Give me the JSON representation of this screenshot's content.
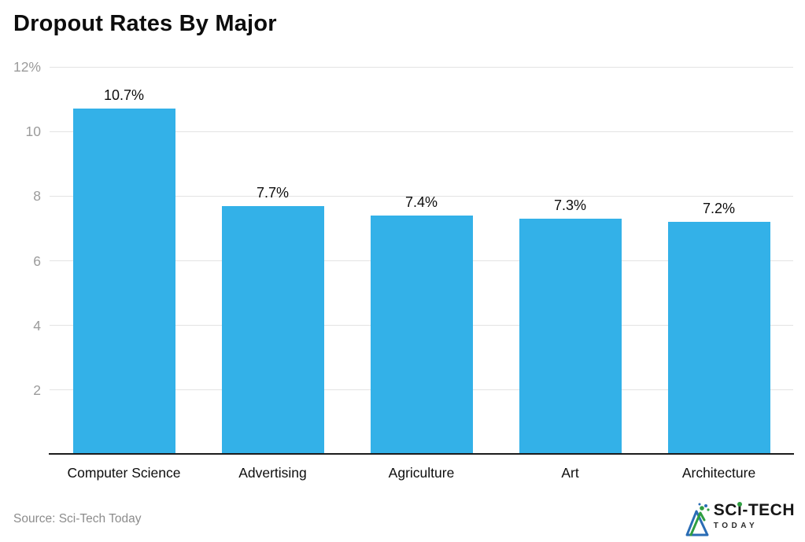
{
  "page": {
    "source_note": "Source: Sci-Tech Today"
  },
  "logo": {
    "brand_sc": "SC",
    "brand_i": "i",
    "brand_tech": "-TECH",
    "sub": "TODAY",
    "icon": "mountain-sparkles-logo-icon",
    "text_color": "#161616",
    "green": "#2f9e41",
    "blue": "#2a6cb5"
  },
  "chart_data": {
    "type": "bar",
    "title": "Dropout Rates By Major",
    "categories": [
      "Computer Science",
      "Advertising",
      "Agriculture",
      "Art",
      "Architecture"
    ],
    "values": [
      10.7,
      7.7,
      7.4,
      7.3,
      7.2
    ],
    "value_labels": [
      "10.7%",
      "7.7%",
      "7.4%",
      "7.3%",
      "7.2%"
    ],
    "unit": "%",
    "xlabel": "",
    "ylabel": "",
    "ylim": [
      0,
      12
    ],
    "ytick_interval": 2,
    "ytick_labels": [
      "2",
      "4",
      "6",
      "8",
      "10",
      "12%"
    ],
    "grid": true,
    "legend_position": "none",
    "bar_color": "#33b1e8",
    "gridline_color": "#e3e3e3",
    "tick_label_color": "#9b9b9b",
    "label_color": "#0d0d0d",
    "axis_line_color": "#1c1c1c"
  }
}
